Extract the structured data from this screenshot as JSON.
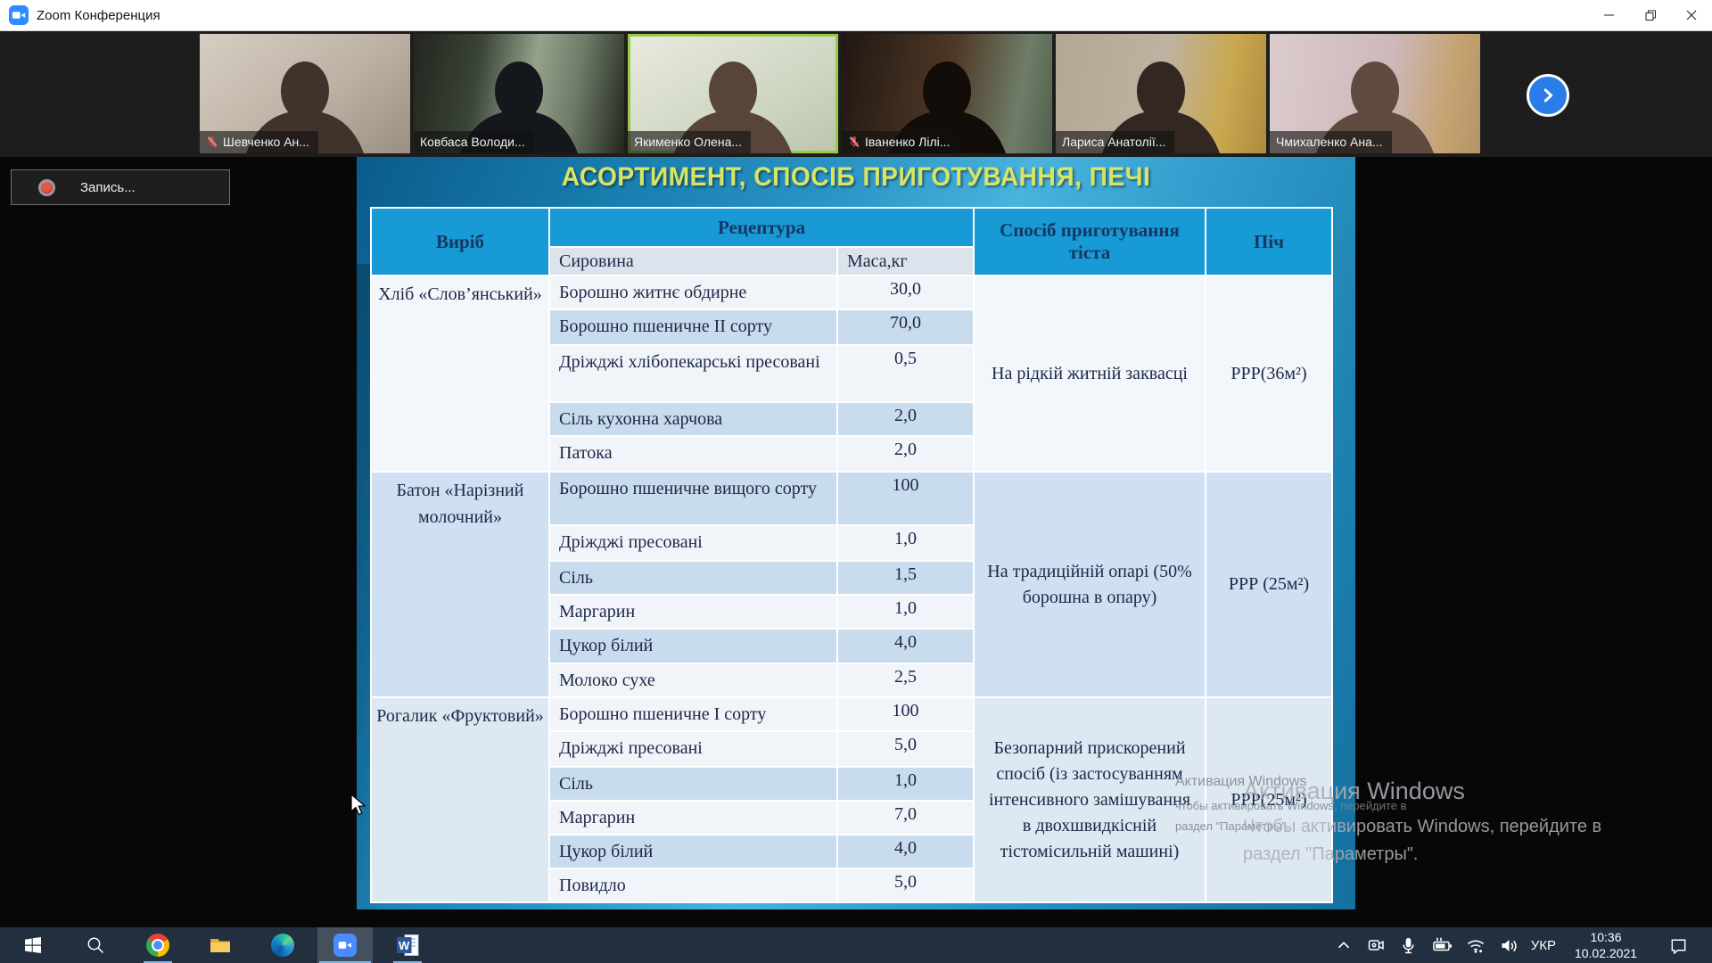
{
  "window": {
    "title": "Zoom Конференция"
  },
  "recording": {
    "label": "Запись..."
  },
  "participants": [
    {
      "name": "Шевченко Ан...",
      "muted": true,
      "speaking": false
    },
    {
      "name": "Ковбаса Володи...",
      "muted": false,
      "speaking": false
    },
    {
      "name": "Якименко Олена...",
      "muted": false,
      "speaking": true
    },
    {
      "name": "Іваненко Лілі...",
      "muted": true,
      "speaking": false
    },
    {
      "name": "Лариса Анатолії...",
      "muted": false,
      "speaking": false
    },
    {
      "name": "Чмихаленко Ана...",
      "muted": false,
      "speaking": false
    }
  ],
  "next_button": {
    "icon": "chevron-right-icon"
  },
  "slide": {
    "title": "АСОРТИМЕНТ, СПОСІБ ПРИГОТУВАННЯ, ПЕЧІ",
    "table": {
      "headers": {
        "product": "Виріб",
        "recipe": "Рецептура",
        "ingredient": "Сировина",
        "mass": "Маса,кг",
        "method": "Спосіб приготування тіста",
        "oven": "Піч"
      },
      "blocks": [
        {
          "product": "Хліб «Слов’янський»",
          "method": "На рідкій житній заквасці",
          "oven": "РРР(36м²)",
          "rows": [
            {
              "ingredient": "Борошно житнє обдирне",
              "mass": "30,0"
            },
            {
              "ingredient": "Борошно пшеничне II сорту",
              "mass": "70,0"
            },
            {
              "ingredient": "Дріжджі хлібопекарські пресовані",
              "mass": "0,5"
            },
            {
              "ingredient": "Сіль кухонна харчова",
              "mass": "2,0"
            },
            {
              "ingredient": "Патока",
              "mass": "2,0"
            }
          ]
        },
        {
          "product": "Батон «Нарізний молочний»",
          "method": "На традиційній опарі (50% борошна в опару)",
          "oven": "РРР (25м²)",
          "rows": [
            {
              "ingredient": "Борошно пшеничне вищого сорту",
              "mass": "100"
            },
            {
              "ingredient": "Дріжджі пресовані",
              "mass": "1,0"
            },
            {
              "ingredient": "Сіль",
              "mass": "1,5"
            },
            {
              "ingredient": "Маргарин",
              "mass": "1,0"
            },
            {
              "ingredient": "Цукор білий",
              "mass": "4,0"
            },
            {
              "ingredient": "Молоко сухе",
              "mass": "2,5"
            }
          ]
        },
        {
          "product": "Рогалик «Фруктовий»",
          "method": "Безопарний прискорений спосіб (із застосуванням інтенсивного замішування в двохшвидкісній тістомісильній машині)",
          "oven": "РРР(25м²)",
          "rows": [
            {
              "ingredient": "Борошно пшеничне I сорту",
              "mass": "100"
            },
            {
              "ingredient": "Дріжджі пресовані",
              "mass": "5,0"
            },
            {
              "ingredient": "Сіль",
              "mass": "1,0"
            },
            {
              "ingredient": "Маргарин",
              "mass": "7,0"
            },
            {
              "ingredient": "Цукор білий",
              "mass": "4,0"
            },
            {
              "ingredient": "Повидло",
              "mass": "5,0"
            }
          ]
        }
      ]
    }
  },
  "watermark_screen": {
    "line1": "Активация Windows",
    "line2": "чтобы активировать Windows, перейдите в",
    "line3": "раздел \"Параметры\"."
  },
  "watermark_local": {
    "line1": "Активация Windows",
    "line2": "Чтобы активировать Windows, перейдите в",
    "line3": "раздел \"Параметры\"."
  },
  "taskbar": {
    "apps": [
      {
        "icon": "windows-start-icon"
      },
      {
        "icon": "search-icon"
      },
      {
        "icon": "chrome-icon",
        "indicator": true
      },
      {
        "icon": "file-explorer-icon"
      },
      {
        "icon": "edge-icon"
      },
      {
        "icon": "zoom-icon",
        "active": true
      },
      {
        "icon": "word-icon",
        "indicator": true
      }
    ],
    "tray": {
      "icons": [
        "chevron-up-icon",
        "camera-icon",
        "microphone-icon",
        "battery-charging-icon",
        "wifi-icon",
        "volume-icon"
      ],
      "language": "УКР",
      "time": "10:36",
      "date": "10.02.2021",
      "notification": "action-center-icon"
    }
  },
  "colors": {
    "header_blue": "#189ad6",
    "row_blue": "#c9dcee",
    "row_light": "#f1f5fa",
    "title_yellow": "#d8e464",
    "speaking_green": "#98ca45",
    "taskbar_underline": "#75b6ea"
  }
}
